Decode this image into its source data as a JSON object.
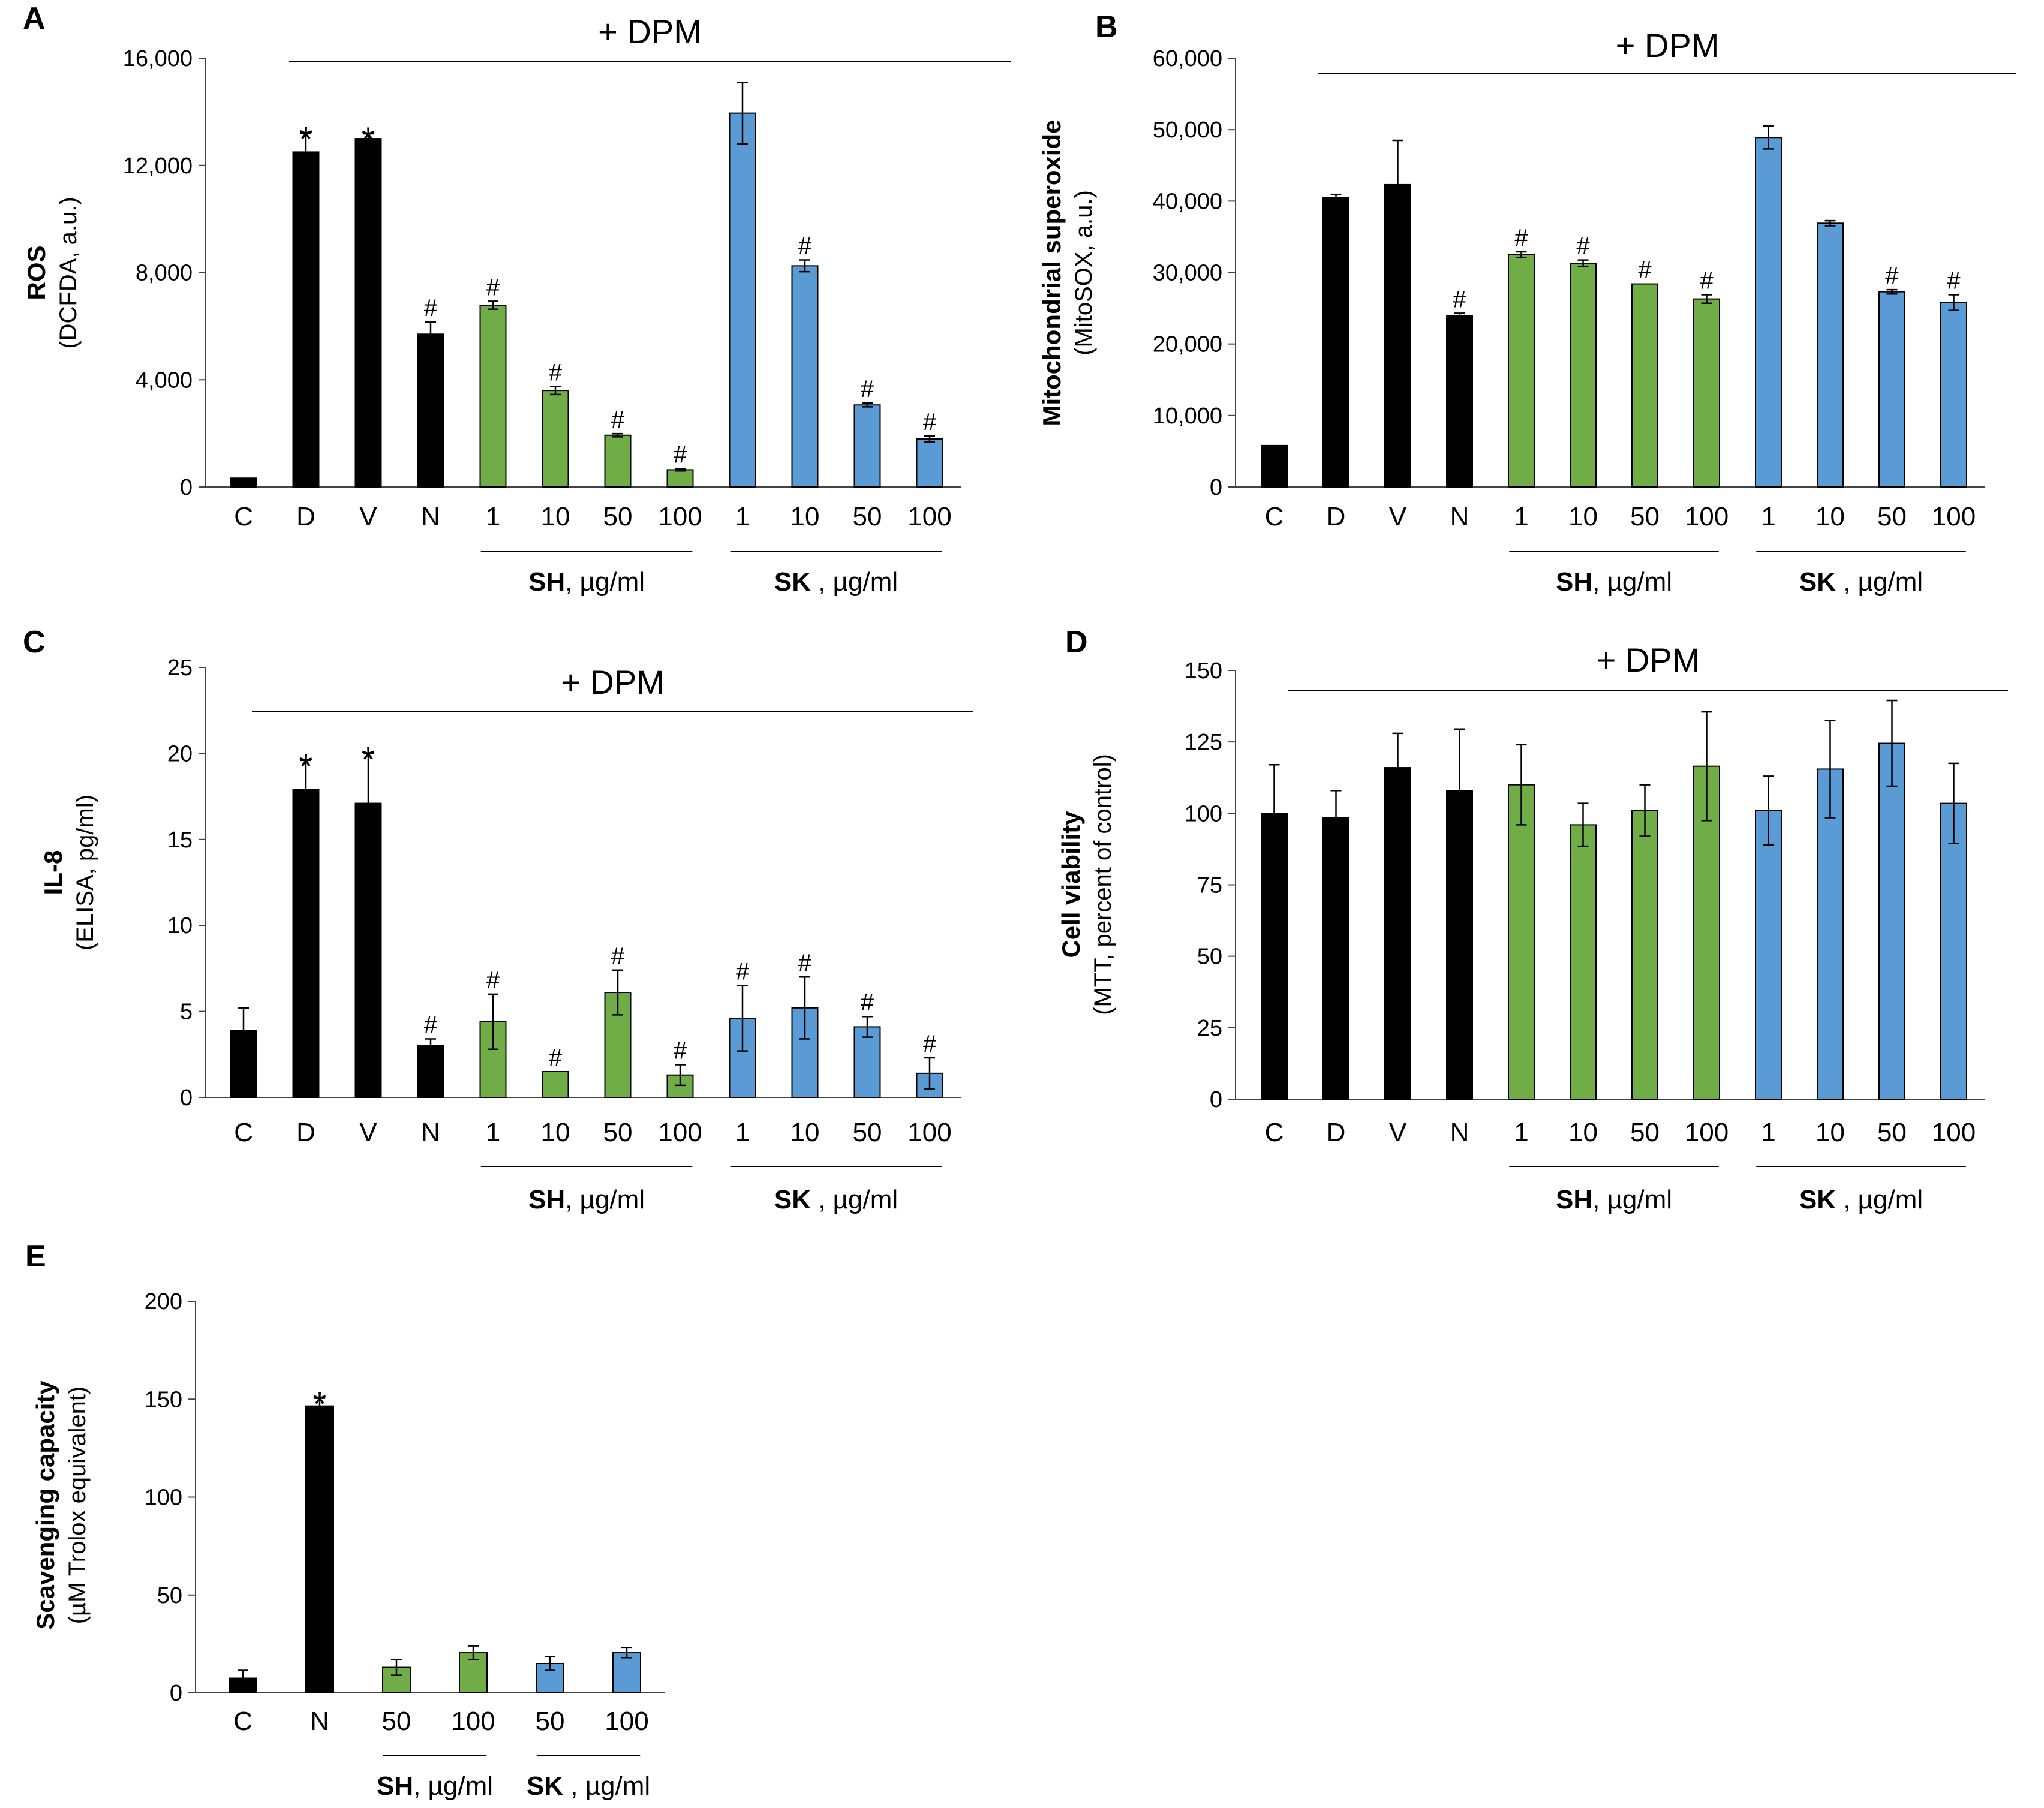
{
  "colors": {
    "control": "#000000",
    "sh": "#70AD47",
    "sk": "#5B9BD5"
  },
  "chart_data": [
    {
      "id": "A",
      "type": "bar",
      "panel_label": "A",
      "title": "+ DPM",
      "ylabel_bold": "ROS",
      "ylabel": "(DCFDA, a.u.)",
      "ylim": [
        0,
        16000
      ],
      "yticks": [
        0,
        4000,
        8000,
        12000,
        16000
      ],
      "ytick_labels": [
        "0",
        "4,000",
        "8,000",
        "12,000",
        "16,000"
      ],
      "categories": [
        "C",
        "D",
        "V",
        "N",
        "1",
        "10",
        "50",
        "100",
        "1",
        "10",
        "50",
        "100"
      ],
      "groups": [
        {
          "name": "SH",
          "unit": ", µg/ml",
          "from": 4,
          "to": 7
        },
        {
          "name": "SK",
          "unit": " , µg/ml",
          "from": 8,
          "to": 11
        }
      ],
      "values": [
        330,
        12500,
        13000,
        5700,
        6780,
        3600,
        1930,
        640,
        13950,
        8250,
        3060,
        1790
      ],
      "errors": [
        0,
        700,
        180,
        450,
        150,
        150,
        60,
        40,
        1150,
        220,
        70,
        110
      ],
      "marks": [
        "",
        "*",
        "*",
        "#",
        "#",
        "#",
        "#",
        "#",
        "",
        "#",
        "#",
        "#"
      ],
      "dpm_from": 1
    },
    {
      "id": "B",
      "type": "bar",
      "panel_label": "B",
      "title": "+ DPM",
      "ylabel_bold": "Mitochondrial superoxide",
      "ylabel": "(MitoSOX, a.u.)",
      "ylim": [
        0,
        60000
      ],
      "yticks": [
        0,
        10000,
        20000,
        30000,
        40000,
        50000,
        60000
      ],
      "ytick_labels": [
        "0",
        "10,000",
        "20,000",
        "30,000",
        "40,000",
        "50,000",
        "60,000"
      ],
      "categories": [
        "C",
        "D",
        "V",
        "N",
        "1",
        "10",
        "50",
        "100",
        "1",
        "10",
        "50",
        "100"
      ],
      "groups": [
        {
          "name": "SH",
          "unit": ", µg/ml",
          "from": 4,
          "to": 7
        },
        {
          "name": "SK",
          "unit": " , µg/ml",
          "from": 8,
          "to": 11
        }
      ],
      "values": [
        5800,
        40500,
        42300,
        24000,
        32500,
        31300,
        28400,
        26300,
        48900,
        36900,
        27300,
        25800
      ],
      "errors": [
        0,
        400,
        6200,
        300,
        400,
        450,
        0,
        600,
        1600,
        350,
        300,
        1100
      ],
      "marks": [
        "",
        "",
        "",
        "#",
        "#",
        "#",
        "#",
        "#",
        "",
        "",
        "#",
        "#"
      ],
      "dpm_from": 1
    },
    {
      "id": "C",
      "type": "bar",
      "panel_label": "C",
      "title": "+ DPM",
      "ylabel_bold": "IL-8",
      "ylabel": "(ELISA, pg/ml)",
      "ylim": [
        0,
        25
      ],
      "yticks": [
        0,
        5,
        10,
        15,
        20,
        25
      ],
      "ytick_labels": [
        "0",
        "5",
        "10",
        "15",
        "20",
        "25"
      ],
      "categories": [
        "C",
        "D",
        "V",
        "N",
        "1",
        "10",
        "50",
        "100",
        "1",
        "10",
        "50",
        "100"
      ],
      "groups": [
        {
          "name": "SH",
          "unit": ", µg/ml",
          "from": 4,
          "to": 7
        },
        {
          "name": "SK",
          "unit": " , µg/ml",
          "from": 8,
          "to": 11
        }
      ],
      "values": [
        3.9,
        17.9,
        17.1,
        3.0,
        4.4,
        1.5,
        6.1,
        1.3,
        4.6,
        5.2,
        4.1,
        1.4
      ],
      "errors": [
        1.3,
        1.7,
        2.9,
        0.4,
        1.6,
        0,
        1.3,
        0.6,
        1.9,
        1.8,
        0.6,
        0.9
      ],
      "marks": [
        "",
        "*",
        "*",
        "#",
        "#",
        "#",
        "#",
        "#",
        "#",
        "#",
        "#",
        "#"
      ],
      "dpm_from": 1
    },
    {
      "id": "D",
      "type": "bar",
      "panel_label": "D",
      "title": "+ DPM",
      "ylabel_bold": "Cell viability",
      "ylabel": "(MTT, percent of control)",
      "ylim": [
        0,
        150
      ],
      "yticks": [
        0,
        25,
        50,
        75,
        100,
        125,
        150
      ],
      "ytick_labels": [
        "0",
        "25",
        "50",
        "75",
        "100",
        "125",
        "150"
      ],
      "categories": [
        "C",
        "D",
        "V",
        "N",
        "1",
        "10",
        "50",
        "100",
        "1",
        "10",
        "50",
        "100"
      ],
      "groups": [
        {
          "name": "SH",
          "unit": ", µg/ml",
          "from": 4,
          "to": 7
        },
        {
          "name": "SK",
          "unit": " , µg/ml",
          "from": 8,
          "to": 11
        }
      ],
      "values": [
        100,
        98.5,
        116,
        108,
        110,
        96,
        101,
        116.5,
        101,
        115.5,
        124.5,
        103.5
      ],
      "errors": [
        17,
        9.5,
        12,
        21.5,
        14,
        7.5,
        9,
        19,
        12,
        17,
        15,
        14
      ],
      "marks": [
        "",
        "",
        "",
        "",
        "",
        "",
        "",
        "",
        "",
        "",
        "",
        ""
      ],
      "dpm_from": 1
    },
    {
      "id": "E",
      "type": "bar",
      "panel_label": "E",
      "title": "",
      "ylabel_bold": "Scavenging capacity",
      "ylabel": "(µM Trolox equivalent)",
      "ylim": [
        0,
        200
      ],
      "yticks": [
        0,
        50,
        100,
        150,
        200
      ],
      "ytick_labels": [
        "0",
        "50",
        "100",
        "150",
        "200"
      ],
      "categories": [
        "C",
        "N",
        "50",
        "100",
        "50",
        "100"
      ],
      "groups": [
        {
          "name": "SH",
          "unit": ", µg/ml",
          "from": 2,
          "to": 3
        },
        {
          "name": "SK",
          "unit": " , µg/ml",
          "from": 4,
          "to": 5
        }
      ],
      "values": [
        7.5,
        146.5,
        13,
        20.5,
        15,
        20.5
      ],
      "errors": [
        4,
        4,
        4,
        3.5,
        3.5,
        2.5
      ],
      "marks": [
        "",
        "*",
        "",
        "",
        "",
        ""
      ],
      "dpm_from": -1
    }
  ]
}
